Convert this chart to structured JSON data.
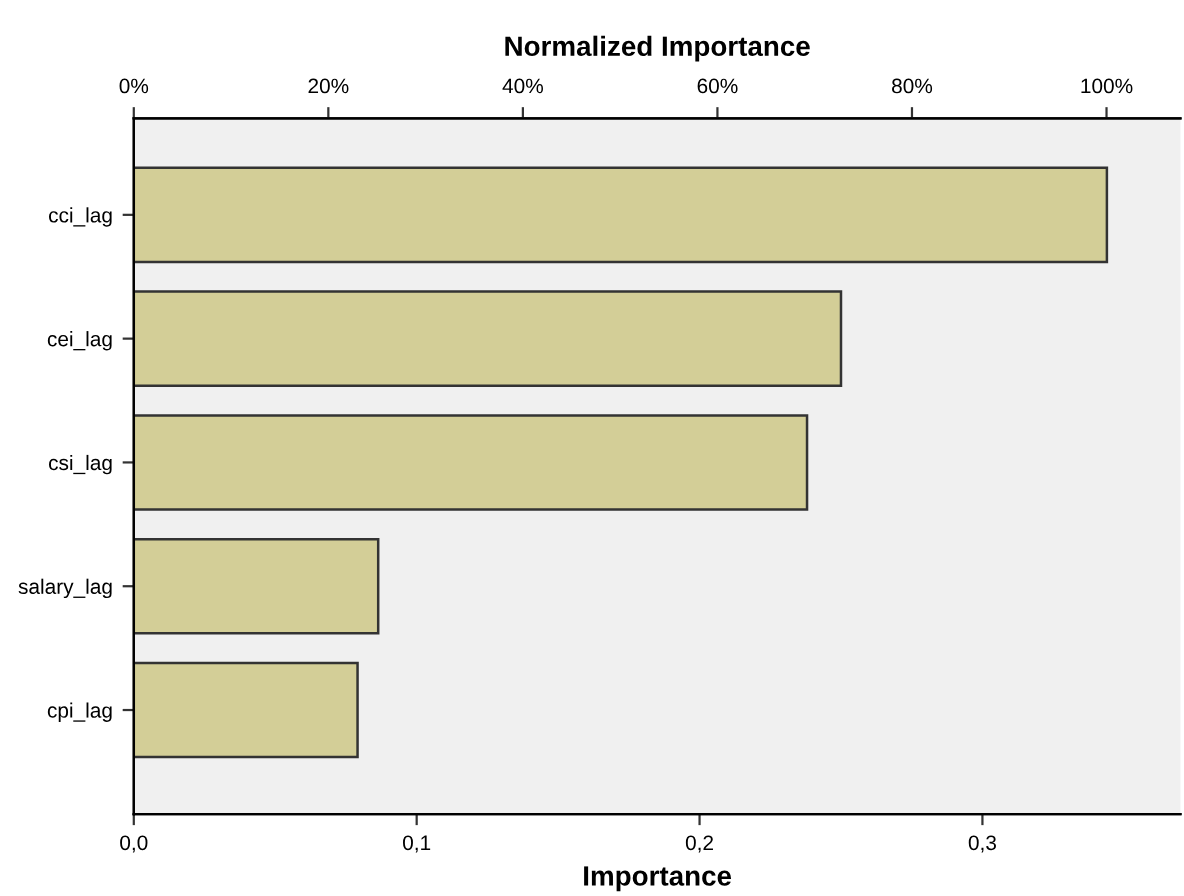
{
  "chart_data": {
    "type": "bar",
    "orientation": "horizontal",
    "xlabel": "Importance",
    "x2label": "Normalized Importance",
    "categories": [
      "cci_lag",
      "cei_lag",
      "csi_lag",
      "salary_lag",
      "cpi_lag"
    ],
    "values": [
      0.344,
      0.25,
      0.238,
      0.0864,
      0.0791
    ],
    "color": "#d3ce97",
    "xlim": [
      0,
      0.37
    ],
    "xticks": [
      {
        "value": 0,
        "label": "0,0"
      },
      {
        "value": 0.1,
        "label": "0,1"
      },
      {
        "value": 0.2,
        "label": "0,2"
      },
      {
        "value": 0.3,
        "label": "0,3"
      }
    ],
    "x2lim": [
      0,
      107.6
    ],
    "x2ticks": [
      {
        "value": 0,
        "label": "0%"
      },
      {
        "value": 20,
        "label": "20%"
      },
      {
        "value": 40,
        "label": "40%"
      },
      {
        "value": 60,
        "label": "60%"
      },
      {
        "value": 80,
        "label": "80%"
      },
      {
        "value": 100,
        "label": "100%"
      }
    ],
    "grid": false
  }
}
